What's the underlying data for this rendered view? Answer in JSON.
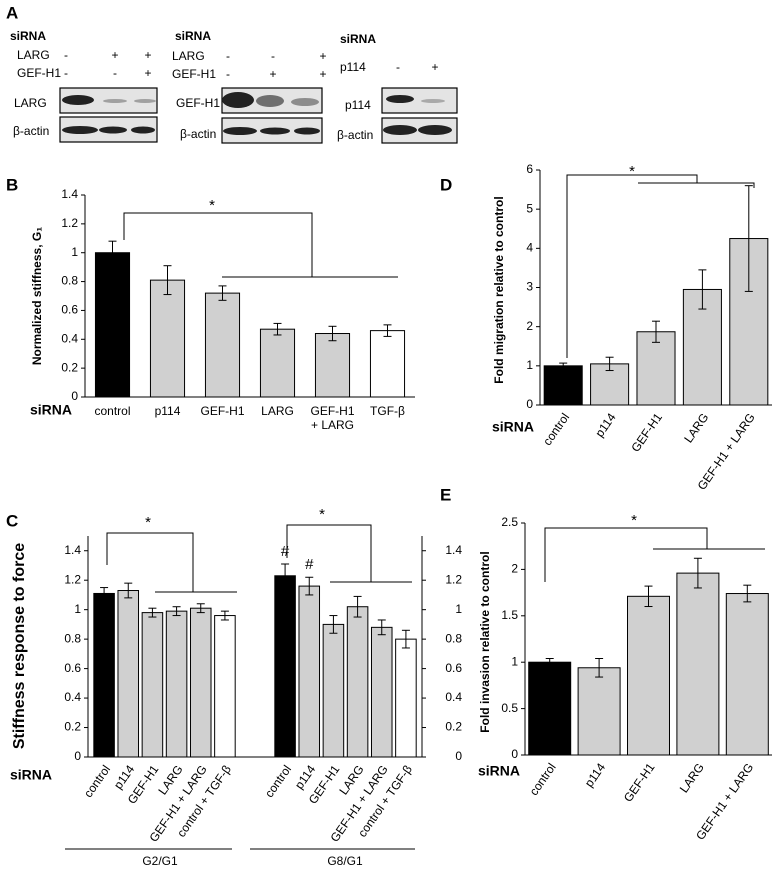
{
  "panel_a": {
    "label": "A",
    "blots": [
      {
        "title": "siRNA",
        "conditions": [
          {
            "name": "LARG",
            "signs": [
              "-",
              "+",
              "+"
            ]
          },
          {
            "name": "GEF-H1",
            "signs": [
              "-",
              "-",
              "+"
            ]
          }
        ],
        "bands": [
          "LARG",
          "β-actin"
        ]
      },
      {
        "title": "siRNA",
        "conditions": [
          {
            "name": "LARG",
            "signs": [
              "-",
              "-",
              "+"
            ]
          },
          {
            "name": "GEF-H1",
            "signs": [
              "-",
              "+",
              "+"
            ]
          }
        ],
        "bands": [
          "GEF-H1",
          "β-actin"
        ]
      },
      {
        "title": "siRNA",
        "conditions": [
          {
            "name": "p114",
            "signs": [
              "-",
              "+"
            ]
          }
        ],
        "bands": [
          "p114",
          "β-actin"
        ]
      }
    ]
  },
  "chart_data": [
    {
      "type": "bar",
      "panel": "B",
      "ylabel": "Normalized stiffness, G₁",
      "xlabel": "siRNA",
      "categories": [
        "control",
        "p114",
        "GEF-H1",
        "LARG",
        [
          "GEF-H1",
          "+ LARG"
        ],
        "TGF-β"
      ],
      "values": [
        1.0,
        0.81,
        0.72,
        0.47,
        0.44,
        0.46
      ],
      "errors": [
        0.08,
        0.1,
        0.05,
        0.04,
        0.05,
        0.04
      ],
      "colors": [
        "#000000",
        "#d0d0d0",
        "#d0d0d0",
        "#d0d0d0",
        "#d0d0d0",
        "#ffffff"
      ],
      "ylim": [
        0,
        1.4
      ],
      "yticks": [
        0,
        0.2,
        0.4,
        0.6,
        0.8,
        1,
        1.2,
        1.4
      ],
      "significance": "*"
    },
    {
      "type": "grouped-bar",
      "panel": "C",
      "ylabel": "Stiffness response to force",
      "xlabel": "siRNA",
      "categories": [
        "control",
        "p114",
        "GEF-H1",
        "LARG",
        "GEF-H1 + LARG",
        "control + TGF-β"
      ],
      "colors": [
        "#000000",
        "#d0d0d0",
        "#d0d0d0",
        "#d0d0d0",
        "#d0d0d0",
        "#ffffff"
      ],
      "groups": [
        {
          "label": "G2/G1",
          "values": [
            1.11,
            1.13,
            0.98,
            0.99,
            1.01,
            0.96
          ],
          "errors": [
            0.04,
            0.05,
            0.03,
            0.03,
            0.03,
            0.03
          ]
        },
        {
          "label": "G8/G1",
          "values": [
            1.23,
            1.16,
            0.9,
            1.02,
            0.88,
            0.8
          ],
          "errors": [
            0.08,
            0.06,
            0.06,
            0.07,
            0.05,
            0.06
          ]
        }
      ],
      "annotations": [
        "#",
        "#"
      ],
      "ylim": [
        0,
        1.5
      ],
      "yticks": [
        0,
        0.2,
        0.4,
        0.6,
        0.8,
        1,
        1.2,
        1.4
      ],
      "y2lim": [
        0,
        1.5
      ],
      "y2ticks": [
        0,
        0.2,
        0.4,
        0.6,
        0.8,
        1,
        1.2,
        1.4
      ],
      "significance": [
        "*",
        "*"
      ]
    },
    {
      "type": "bar",
      "panel": "D",
      "ylabel": "Fold migration relative to control",
      "xlabel": "siRNA",
      "categories": [
        "control",
        "p114",
        "GEF-H1",
        "LARG",
        "GEF-H1 + LARG"
      ],
      "values": [
        1.0,
        1.05,
        1.87,
        2.95,
        4.25
      ],
      "errors": [
        0.07,
        0.17,
        0.27,
        0.5,
        1.35
      ],
      "colors": [
        "#000000",
        "#d0d0d0",
        "#d0d0d0",
        "#d0d0d0",
        "#d0d0d0"
      ],
      "ylim": [
        0,
        6
      ],
      "yticks": [
        0,
        1,
        2,
        3,
        4,
        5,
        6
      ],
      "significance": "*"
    },
    {
      "type": "bar",
      "panel": "E",
      "ylabel": "Fold invasion relative to control",
      "xlabel": "siRNA",
      "categories": [
        "control",
        "p114",
        "GEF-H1",
        "LARG",
        "GEF-H1 + LARG"
      ],
      "values": [
        1.0,
        0.94,
        1.71,
        1.96,
        1.74
      ],
      "errors": [
        0.04,
        0.1,
        0.11,
        0.16,
        0.09
      ],
      "colors": [
        "#000000",
        "#d0d0d0",
        "#d0d0d0",
        "#d0d0d0",
        "#d0d0d0"
      ],
      "ylim": [
        0,
        2.5
      ],
      "yticks": [
        0,
        0.5,
        1,
        1.5,
        2,
        2.5
      ],
      "significance": "*"
    }
  ]
}
